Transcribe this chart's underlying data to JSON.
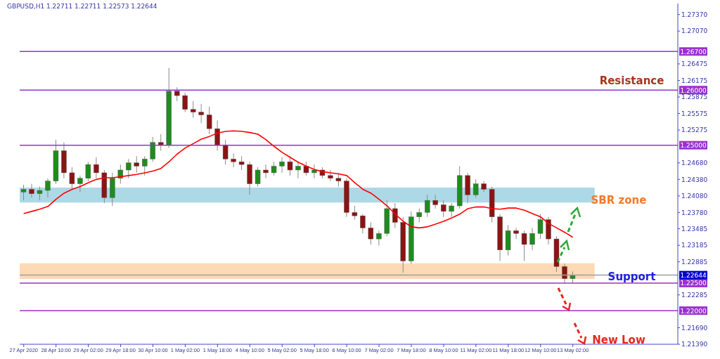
{
  "chart_data": {
    "type": "candlestick",
    "title": "GBPUSD,H1  1.22711 1.22711 1.22573 1.22644",
    "categories": [
      "27 Apr 2020",
      null,
      null,
      null,
      "28 Apr 10:00",
      null,
      null,
      null,
      "29 Apr 02:00",
      null,
      null,
      null,
      "29 Apr 18:00",
      null,
      null,
      null,
      "30 Apr 10:00",
      null,
      null,
      null,
      "1 May 02:00",
      null,
      null,
      null,
      "1 May 18:00",
      null,
      null,
      null,
      "4 May 10:00",
      null,
      null,
      null,
      "5 May 02:00",
      null,
      null,
      null,
      "5 May 18:00",
      null,
      null,
      null,
      "6 May 10:00",
      null,
      null,
      null,
      "7 May 02:00",
      null,
      null,
      null,
      "7 May 18:00",
      null,
      null,
      null,
      "8 May 10:00",
      null,
      null,
      null,
      "11 May 02:00",
      null,
      null,
      null,
      "11 May 18:00",
      null,
      null,
      null,
      "12 May 10:00",
      null,
      null,
      null,
      "13 May 02:00"
    ],
    "ohlc": [
      [
        1.2415,
        1.2428,
        1.24,
        1.242
      ],
      [
        1.242,
        1.243,
        1.2405,
        1.2412
      ],
      [
        1.2412,
        1.2425,
        1.24,
        1.2418
      ],
      [
        1.2418,
        1.244,
        1.2405,
        1.2435
      ],
      [
        1.2435,
        1.251,
        1.243,
        1.249
      ],
      [
        1.249,
        1.2505,
        1.244,
        1.245
      ],
      [
        1.245,
        1.246,
        1.242,
        1.243
      ],
      [
        1.243,
        1.2445,
        1.2415,
        1.244
      ],
      [
        1.244,
        1.247,
        1.2435,
        1.2465
      ],
      [
        1.2465,
        1.2478,
        1.244,
        1.245
      ],
      [
        1.245,
        1.2455,
        1.2395,
        1.2405
      ],
      [
        1.2405,
        1.245,
        1.239,
        1.244
      ],
      [
        1.244,
        1.2465,
        1.243,
        1.2455
      ],
      [
        1.2455,
        1.2475,
        1.244,
        1.2468
      ],
      [
        1.2468,
        1.248,
        1.245,
        1.2462
      ],
      [
        1.2462,
        1.248,
        1.2445,
        1.2475
      ],
      [
        1.2475,
        1.2515,
        1.247,
        1.2505
      ],
      [
        1.2505,
        1.252,
        1.249,
        1.25
      ],
      [
        1.25,
        1.264,
        1.2495,
        1.2598
      ],
      [
        1.2598,
        1.2605,
        1.258,
        1.259
      ],
      [
        1.259,
        1.2595,
        1.256,
        1.2565
      ],
      [
        1.2565,
        1.258,
        1.255,
        1.256
      ],
      [
        1.256,
        1.2575,
        1.254,
        1.2555
      ],
      [
        1.2555,
        1.257,
        1.252,
        1.253
      ],
      [
        1.253,
        1.2545,
        1.249,
        1.25
      ],
      [
        1.25,
        1.251,
        1.2465,
        1.2475
      ],
      [
        1.2475,
        1.2485,
        1.246,
        1.247
      ],
      [
        1.247,
        1.248,
        1.2455,
        1.2465
      ],
      [
        1.2465,
        1.247,
        1.241,
        1.243
      ],
      [
        1.243,
        1.246,
        1.2425,
        1.2455
      ],
      [
        1.2455,
        1.2465,
        1.244,
        1.245
      ],
      [
        1.245,
        1.247,
        1.2445,
        1.2462
      ],
      [
        1.2462,
        1.2478,
        1.245,
        1.247
      ],
      [
        1.247,
        1.248,
        1.2445,
        1.2455
      ],
      [
        1.2455,
        1.247,
        1.244,
        1.2462
      ],
      [
        1.2462,
        1.247,
        1.2445,
        1.245
      ],
      [
        1.245,
        1.2465,
        1.244,
        1.2455
      ],
      [
        1.2455,
        1.246,
        1.244,
        1.2445
      ],
      [
        1.2445,
        1.2455,
        1.2435,
        1.244
      ],
      [
        1.244,
        1.245,
        1.2425,
        1.2435
      ],
      [
        1.2435,
        1.244,
        1.237,
        1.2378
      ],
      [
        1.2378,
        1.239,
        1.2365,
        1.2372
      ],
      [
        1.2372,
        1.2375,
        1.234,
        1.235
      ],
      [
        1.235,
        1.236,
        1.232,
        1.233
      ],
      [
        1.233,
        1.2345,
        1.2318,
        1.234
      ],
      [
        1.234,
        1.24,
        1.2335,
        1.2385
      ],
      [
        1.2385,
        1.2395,
        1.235,
        1.236
      ],
      [
        1.236,
        1.237,
        1.2269,
        1.229
      ],
      [
        1.229,
        1.238,
        1.2285,
        1.237
      ],
      [
        1.237,
        1.2385,
        1.236,
        1.2378
      ],
      [
        1.2378,
        1.241,
        1.237,
        1.24
      ],
      [
        1.24,
        1.241,
        1.2385,
        1.2392
      ],
      [
        1.2392,
        1.24,
        1.237,
        1.238
      ],
      [
        1.238,
        1.2395,
        1.237,
        1.239
      ],
      [
        1.239,
        1.2462,
        1.2385,
        1.2445
      ],
      [
        1.2445,
        1.245,
        1.2395,
        1.241
      ],
      [
        1.241,
        1.2438,
        1.2405,
        1.243
      ],
      [
        1.243,
        1.2435,
        1.2415,
        1.242
      ],
      [
        1.242,
        1.2425,
        1.236,
        1.237
      ],
      [
        1.237,
        1.2375,
        1.229,
        1.231
      ],
      [
        1.231,
        1.2355,
        1.23,
        1.2345
      ],
      [
        1.2345,
        1.235,
        1.233,
        1.234
      ],
      [
        1.234,
        1.2345,
        1.229,
        1.232
      ],
      [
        1.232,
        1.235,
        1.231,
        1.234
      ],
      [
        1.234,
        1.2375,
        1.233,
        1.2365
      ],
      [
        1.2365,
        1.237,
        1.232,
        1.233
      ],
      [
        1.233,
        1.2335,
        1.227,
        1.228
      ],
      [
        1.228,
        1.2285,
        1.225,
        1.2258
      ],
      [
        1.2258,
        1.2271,
        1.225,
        1.2264
      ]
    ],
    "series": [
      {
        "type": "line",
        "color": "#ff0000",
        "values": [
          1.2376,
          1.238,
          1.2384,
          1.2389,
          1.2402,
          1.2413,
          1.242,
          1.2425,
          1.2432,
          1.2438,
          1.2441,
          1.2441,
          1.2443,
          1.2445,
          1.2447,
          1.245,
          1.2453,
          1.2458,
          1.247,
          1.2484,
          1.2495,
          1.2503,
          1.2511,
          1.2516,
          1.2522,
          1.2525,
          1.2526,
          1.2525,
          1.2523,
          1.252,
          1.251,
          1.2498,
          1.2487,
          1.2478,
          1.2469,
          1.2462,
          1.2456,
          1.2452,
          1.245,
          1.2448,
          1.2445,
          1.2432,
          1.242,
          1.2413,
          1.2402,
          1.239,
          1.2375,
          1.2362,
          1.2352,
          1.235,
          1.2352,
          1.2357,
          1.2362,
          1.2368,
          1.2375,
          1.2385,
          1.2388,
          1.2388,
          1.2385,
          1.2384,
          1.2386,
          1.2386,
          1.2382,
          1.2376,
          1.237,
          1.2358,
          1.235,
          1.2342,
          1.2333
        ]
      }
    ],
    "marker": "none",
    "ylim": [
      1.2139,
      1.2757
    ],
    "yticks": [
      {
        "value": 1.2737,
        "label": "1.27370"
      },
      {
        "value": 1.2707,
        "label": "1.27070"
      },
      {
        "value": 1.26475,
        "label": "1.26475"
      },
      {
        "value": 1.26175,
        "label": "1.26175"
      },
      {
        "value": 1.25875,
        "label": "1.25875"
      },
      {
        "value": 1.25575,
        "label": "1.25575"
      },
      {
        "value": 1.25275,
        "label": "1.25275"
      },
      {
        "value": 1.2468,
        "label": "1.24680"
      },
      {
        "value": 1.2438,
        "label": "1.24380"
      },
      {
        "value": 1.2408,
        "label": "1.24080"
      },
      {
        "value": 1.2378,
        "label": "1.23780"
      },
      {
        "value": 1.23485,
        "label": "1.23485"
      },
      {
        "value": 1.23185,
        "label": "1.23185"
      },
      {
        "value": 1.22885,
        "label": "1.22885"
      },
      {
        "value": 1.22285,
        "label": "1.22285"
      },
      {
        "value": 1.2169,
        "label": "1.21690"
      },
      {
        "value": 1.2139,
        "label": "1.21390"
      }
    ],
    "ref_lines": [
      {
        "axis": "y",
        "value": 1.267,
        "label": "1.26700",
        "color": "#9932cc"
      },
      {
        "axis": "y",
        "value": 1.26,
        "label": "1.26000",
        "color": "#9932cc"
      },
      {
        "axis": "y",
        "value": 1.25,
        "label": "1.25000",
        "color": "#9932cc"
      },
      {
        "axis": "y",
        "value": 1.225,
        "label": "1.22500",
        "color": "#9932cc"
      },
      {
        "axis": "y",
        "value": 1.22,
        "label": "1.22000",
        "color": "#9932cc"
      },
      {
        "axis": "y",
        "value": 1.22644,
        "label": "1.22644",
        "color": "#a0a0a0"
      }
    ],
    "bands": [
      {
        "axis": "y",
        "from": 1.2396,
        "to": 1.2423,
        "color": "#add8e6"
      },
      {
        "axis": "y",
        "from": 1.22575,
        "to": 1.2286,
        "color": "#fdd9b5"
      }
    ],
    "annotations": [
      {
        "text": "Resistance",
        "y": 1.26
      },
      "SBR zone",
      {
        "text": "Support",
        "y": 1.2262
      },
      "New Low"
    ]
  }
}
